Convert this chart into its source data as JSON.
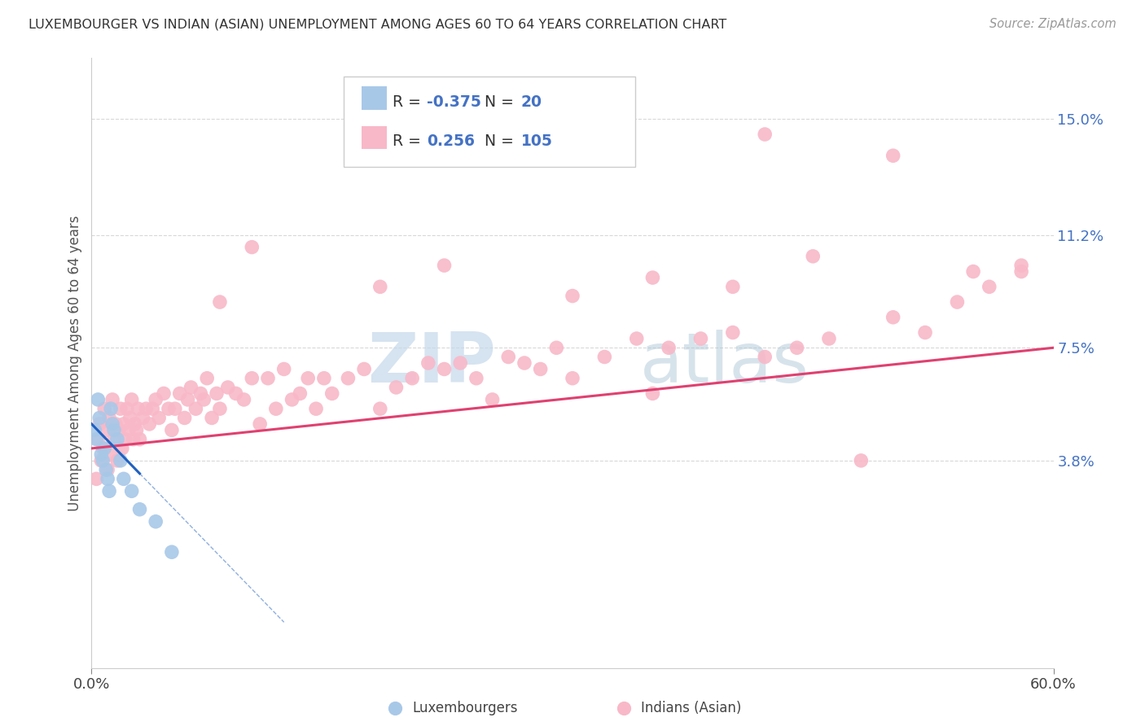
{
  "title": "LUXEMBOURGER VS INDIAN (ASIAN) UNEMPLOYMENT AMONG AGES 60 TO 64 YEARS CORRELATION CHART",
  "source": "Source: ZipAtlas.com",
  "ylabel": "Unemployment Among Ages 60 to 64 years",
  "xlim": [
    0.0,
    60.0
  ],
  "ylim": [
    -3.0,
    17.0
  ],
  "yticks": [
    3.8,
    7.5,
    11.2,
    15.0
  ],
  "ytick_labels": [
    "3.8%",
    "7.5%",
    "11.2%",
    "15.0%"
  ],
  "xtick_labels": [
    "0.0%",
    "60.0%"
  ],
  "legend_R1": "-0.375",
  "legend_N1": "20",
  "legend_R2": "0.256",
  "legend_N2": "105",
  "blue_color": "#a8c8e8",
  "pink_color": "#f8b8c8",
  "blue_line_color": "#2060c0",
  "pink_line_color": "#e04070",
  "watermark_zip": "ZIP",
  "watermark_atlas": "atlas",
  "background_color": "#ffffff",
  "grid_color": "#d8d8d8",
  "luxembourger_points": [
    [
      0.2,
      4.8
    ],
    [
      0.3,
      4.5
    ],
    [
      0.4,
      5.8
    ],
    [
      0.5,
      5.2
    ],
    [
      0.6,
      4.0
    ],
    [
      0.7,
      3.8
    ],
    [
      0.8,
      4.2
    ],
    [
      0.9,
      3.5
    ],
    [
      1.0,
      3.2
    ],
    [
      1.1,
      2.8
    ],
    [
      1.2,
      5.5
    ],
    [
      1.3,
      5.0
    ],
    [
      1.4,
      4.8
    ],
    [
      1.6,
      4.5
    ],
    [
      1.8,
      3.8
    ],
    [
      2.0,
      3.2
    ],
    [
      2.5,
      2.8
    ],
    [
      3.0,
      2.2
    ],
    [
      4.0,
      1.8
    ],
    [
      5.0,
      0.8
    ]
  ],
  "indian_points": [
    [
      0.3,
      3.2
    ],
    [
      0.4,
      4.5
    ],
    [
      0.5,
      5.0
    ],
    [
      0.6,
      3.8
    ],
    [
      0.7,
      4.2
    ],
    [
      0.8,
      5.5
    ],
    [
      0.9,
      4.8
    ],
    [
      1.0,
      3.5
    ],
    [
      1.1,
      5.2
    ],
    [
      1.2,
      4.0
    ],
    [
      1.3,
      5.8
    ],
    [
      1.4,
      4.5
    ],
    [
      1.5,
      5.0
    ],
    [
      1.6,
      3.8
    ],
    [
      1.7,
      4.8
    ],
    [
      1.8,
      5.5
    ],
    [
      1.9,
      4.2
    ],
    [
      2.0,
      5.0
    ],
    [
      2.1,
      4.5
    ],
    [
      2.2,
      5.5
    ],
    [
      2.3,
      4.8
    ],
    [
      2.4,
      5.2
    ],
    [
      2.5,
      5.8
    ],
    [
      2.6,
      4.5
    ],
    [
      2.7,
      5.0
    ],
    [
      2.8,
      4.8
    ],
    [
      2.9,
      5.5
    ],
    [
      3.0,
      4.5
    ],
    [
      3.2,
      5.2
    ],
    [
      3.4,
      5.5
    ],
    [
      3.6,
      5.0
    ],
    [
      3.8,
      5.5
    ],
    [
      4.0,
      5.8
    ],
    [
      4.2,
      5.2
    ],
    [
      4.5,
      6.0
    ],
    [
      4.8,
      5.5
    ],
    [
      5.0,
      4.8
    ],
    [
      5.2,
      5.5
    ],
    [
      5.5,
      6.0
    ],
    [
      5.8,
      5.2
    ],
    [
      6.0,
      5.8
    ],
    [
      6.2,
      6.2
    ],
    [
      6.5,
      5.5
    ],
    [
      6.8,
      6.0
    ],
    [
      7.0,
      5.8
    ],
    [
      7.2,
      6.5
    ],
    [
      7.5,
      5.2
    ],
    [
      7.8,
      6.0
    ],
    [
      8.0,
      5.5
    ],
    [
      8.5,
      6.2
    ],
    [
      9.0,
      6.0
    ],
    [
      9.5,
      5.8
    ],
    [
      10.0,
      6.5
    ],
    [
      10.5,
      5.0
    ],
    [
      11.0,
      6.5
    ],
    [
      11.5,
      5.5
    ],
    [
      12.0,
      6.8
    ],
    [
      12.5,
      5.8
    ],
    [
      13.0,
      6.0
    ],
    [
      13.5,
      6.5
    ],
    [
      14.0,
      5.5
    ],
    [
      14.5,
      6.5
    ],
    [
      15.0,
      6.0
    ],
    [
      16.0,
      6.5
    ],
    [
      17.0,
      6.8
    ],
    [
      18.0,
      5.5
    ],
    [
      19.0,
      6.2
    ],
    [
      20.0,
      6.5
    ],
    [
      21.0,
      7.0
    ],
    [
      22.0,
      6.8
    ],
    [
      23.0,
      7.0
    ],
    [
      24.0,
      6.5
    ],
    [
      25.0,
      5.8
    ],
    [
      26.0,
      7.2
    ],
    [
      27.0,
      7.0
    ],
    [
      28.0,
      6.8
    ],
    [
      29.0,
      7.5
    ],
    [
      30.0,
      6.5
    ],
    [
      32.0,
      7.2
    ],
    [
      34.0,
      7.8
    ],
    [
      35.0,
      6.0
    ],
    [
      36.0,
      7.5
    ],
    [
      38.0,
      7.8
    ],
    [
      40.0,
      8.0
    ],
    [
      42.0,
      7.2
    ],
    [
      44.0,
      7.5
    ],
    [
      46.0,
      7.8
    ],
    [
      48.0,
      3.8
    ],
    [
      50.0,
      8.5
    ],
    [
      52.0,
      8.0
    ],
    [
      54.0,
      9.0
    ],
    [
      55.0,
      10.0
    ],
    [
      56.0,
      9.5
    ],
    [
      58.0,
      10.0
    ],
    [
      30.0,
      9.2
    ],
    [
      35.0,
      9.8
    ],
    [
      40.0,
      9.5
    ],
    [
      42.0,
      14.5
    ],
    [
      45.0,
      10.5
    ],
    [
      50.0,
      13.8
    ],
    [
      22.0,
      10.2
    ],
    [
      18.0,
      9.5
    ],
    [
      8.0,
      9.0
    ],
    [
      10.0,
      10.8
    ],
    [
      58.0,
      10.2
    ]
  ]
}
